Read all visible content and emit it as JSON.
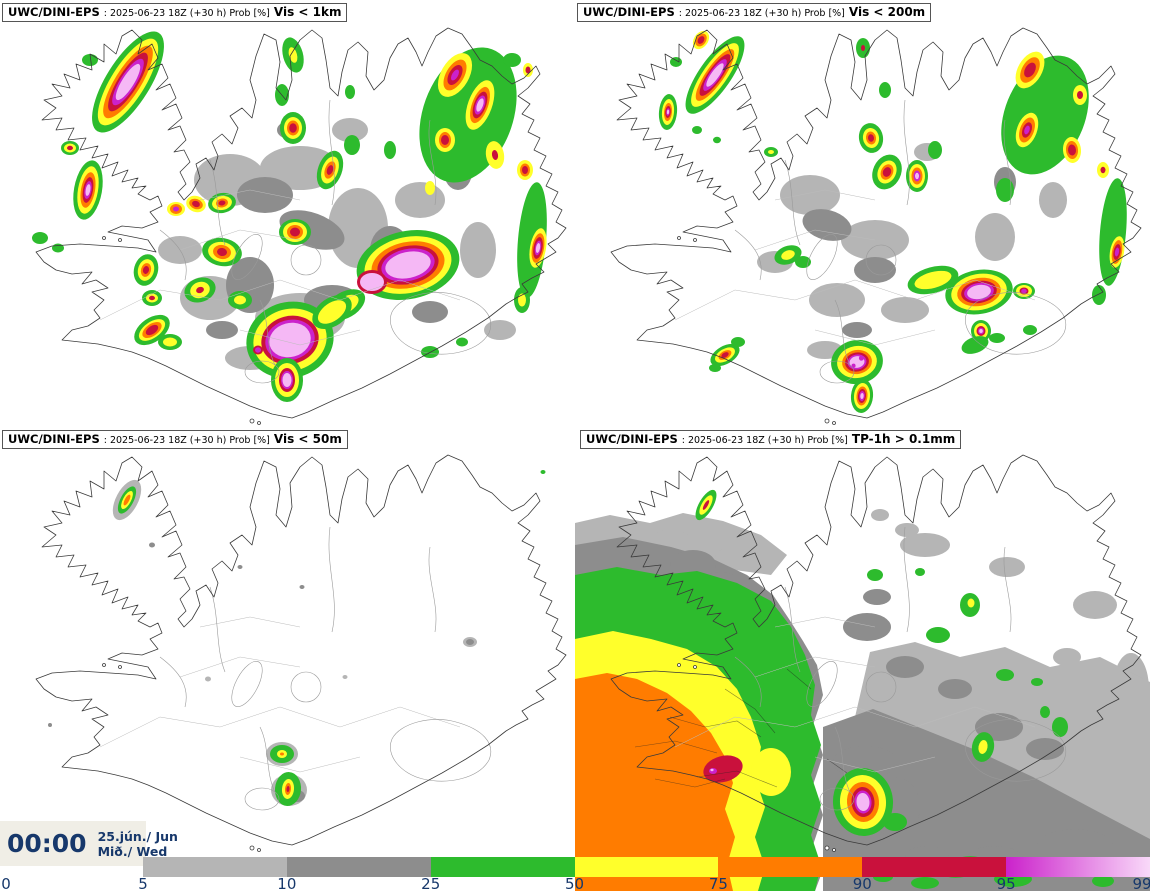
{
  "panels": [
    {
      "model": "UWC/DINI-EPS",
      "run_info": ": 2025-06-23 18Z (+30 h) Prob [%]",
      "variable": "Vis < 1km"
    },
    {
      "model": "UWC/DINI-EPS",
      "run_info": ": 2025-06-23 18Z (+30 h) Prob [%]",
      "variable": "Vis < 200m"
    },
    {
      "model": "UWC/DINI-EPS",
      "run_info": ": 2025-06-23 18Z (+30 h) Prob [%]",
      "variable": "Vis < 50m"
    },
    {
      "model": "UWC/DINI-EPS",
      "run_info": ": 2025-06-23 18Z (+30 h) Prob [%]",
      "variable": "TP-1h > 0.1mm"
    }
  ],
  "clock": {
    "time": "00:00",
    "date": "25.jún./ Jun",
    "weekday": "Mið./ Wed"
  },
  "colorbar": {
    "ticks": [
      "0",
      "5",
      "10",
      "25",
      "50",
      "75",
      "90",
      "95",
      "99"
    ],
    "segments": [
      {
        "from": "5",
        "to": "10",
        "color": "#b5b5b5"
      },
      {
        "from": "10",
        "to": "25",
        "color": "#8d8d8d"
      },
      {
        "from": "25",
        "to": "50",
        "color": "#2dbb2d"
      },
      {
        "from": "50",
        "to": "75",
        "color": "#ffff2b"
      },
      {
        "from": "75",
        "to": "90",
        "color": "#ff7c00"
      },
      {
        "from": "90",
        "to": "95",
        "color": "#c9113c"
      },
      {
        "from": "95",
        "to": "99",
        "gradient": [
          "#cb22cb",
          "#f9d9f9"
        ]
      }
    ],
    "label_color": "#17386b"
  }
}
